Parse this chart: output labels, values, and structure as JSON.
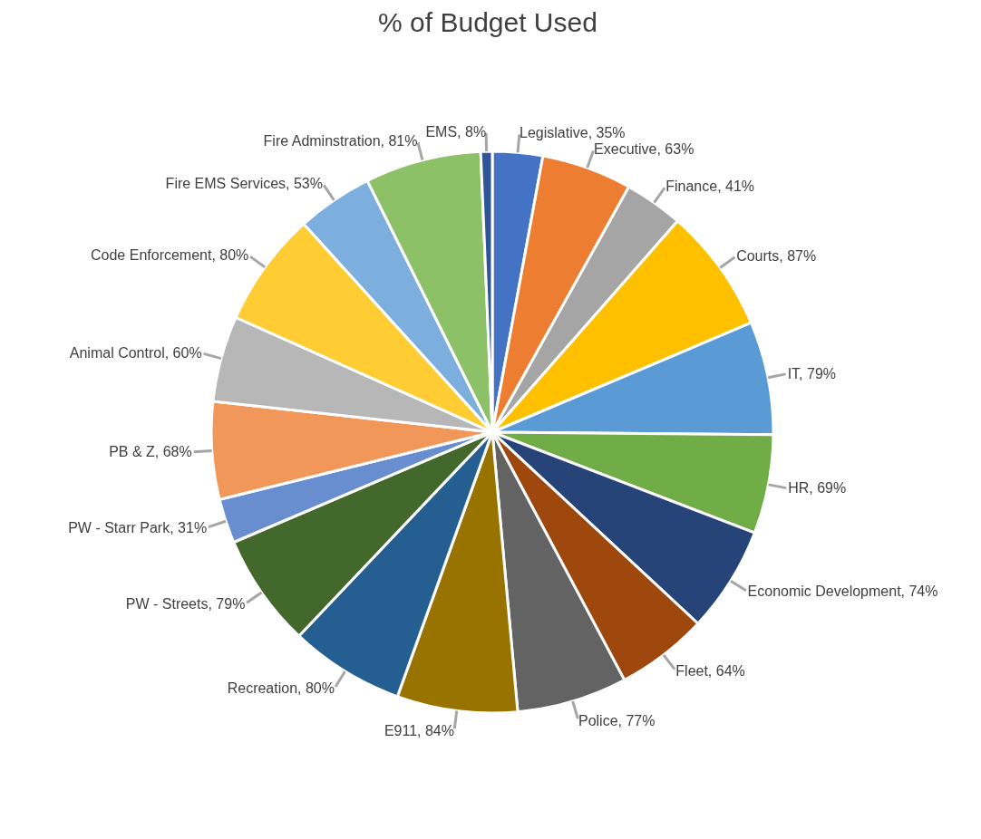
{
  "chart_data": {
    "type": "pie",
    "title": "% of Budget Used",
    "categories": [
      "Legislative",
      "Executive",
      "Finance",
      "Courts",
      "IT",
      "HR",
      "Economic Development",
      "Fleet",
      "Police",
      "E911",
      "Recreation",
      "PW - Streets",
      "PW - Starr Park",
      "PB & Z",
      "Animal Control",
      "Code Enforcement",
      "Fire EMS Services",
      "Fire Adminstration",
      "EMS"
    ],
    "values": [
      35,
      63,
      41,
      87,
      79,
      69,
      74,
      64,
      77,
      84,
      80,
      79,
      31,
      68,
      60,
      80,
      53,
      81,
      8
    ],
    "value_labels": [
      "35%",
      "63%",
      "41%",
      "87%",
      "79%",
      "69%",
      "74%",
      "64%",
      "77%",
      "84%",
      "80%",
      "79%",
      "31%",
      "68%",
      "60%",
      "80%",
      "53%",
      "81%",
      "8%"
    ],
    "colors": [
      "#4472c4",
      "#ed7d31",
      "#a5a5a5",
      "#ffc000",
      "#5b9bd5",
      "#70ad47",
      "#264478",
      "#9e480e",
      "#636363",
      "#997300",
      "#255e91",
      "#43682b",
      "#698ed0",
      "#f1975a",
      "#b7b7b7",
      "#ffcd33",
      "#7cafdd",
      "#8cc168",
      "#2f5597"
    ],
    "legend": false
  }
}
